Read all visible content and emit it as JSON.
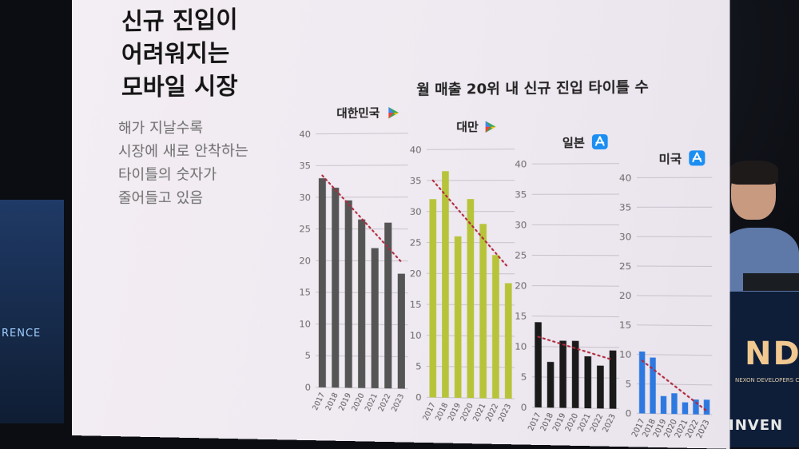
{
  "slide": {
    "title": "신규 진입이\n어려워지는\n모바일 시장",
    "subtitle": "해가 지날수록\n시장에 새로 안착하는\n타이틀의 숫자가\n줄어들고 있음"
  },
  "chart_data": {
    "title": "월 매출 20위 내 신규 진입 타이틀 수",
    "type": "bar",
    "ylim": [
      0,
      40
    ],
    "yticks": [
      0,
      5,
      10,
      15,
      20,
      25,
      30,
      35,
      40
    ],
    "categories": [
      "2017",
      "2018",
      "2019",
      "2020",
      "2021",
      "2022",
      "2023"
    ],
    "grid": true,
    "trendline": "dotted",
    "series": [
      {
        "name": "대한민국",
        "store_icon": "google-play-icon",
        "color": "#555555",
        "values": [
          33,
          31.5,
          29.5,
          26.5,
          22,
          26,
          18
        ]
      },
      {
        "name": "대만",
        "store_icon": "google-play-icon",
        "color": "#b7c43a",
        "values": [
          32,
          36.5,
          26,
          32,
          28,
          23,
          18.5
        ]
      },
      {
        "name": "일본",
        "store_icon": "app-store-icon",
        "color": "#1a1a1a",
        "values": [
          14,
          7.5,
          11,
          11,
          8.5,
          7,
          9.5
        ]
      },
      {
        "name": "미국",
        "store_icon": "app-store-icon",
        "color": "#2e79e0",
        "values": [
          10.5,
          9.5,
          3,
          3.5,
          2,
          2.5,
          2.5
        ]
      }
    ],
    "trendline_color": "#b0283a"
  },
  "backdrop": {
    "left_screen_text": "RENCE",
    "ndc_logo": "NDC",
    "ndc_subtitle": "NEXON DEVELOPERS CON",
    "watermark": "INVEN"
  }
}
